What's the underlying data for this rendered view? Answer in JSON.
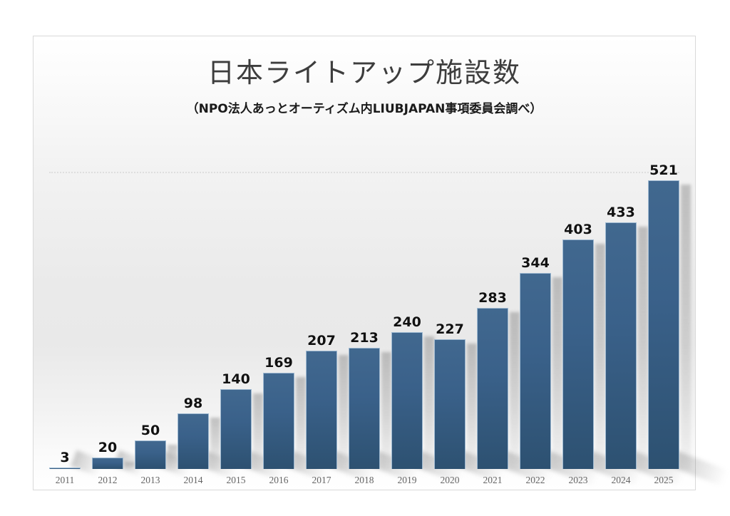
{
  "header": {
    "title": "日本ライトアップ施設数",
    "subtitle": "（NPO法人あっとオーティズム内LIUBJAPAN事項委員会調べ）"
  },
  "chart_data": {
    "type": "bar",
    "title": "日本ライトアップ施設数",
    "subtitle": "（NPO法人あっとオーティズム内LIUBJAPAN事項委員会調べ）",
    "categories": [
      "2011",
      "2012",
      "2013",
      "2014",
      "2015",
      "2016",
      "2017",
      "2018",
      "2019",
      "2020",
      "2021",
      "2022",
      "2023",
      "2024",
      "2025"
    ],
    "values": [
      3,
      20,
      50,
      98,
      140,
      169,
      207,
      213,
      240,
      227,
      283,
      344,
      403,
      433,
      521
    ],
    "xlabel": "",
    "ylabel": "",
    "ylim": [
      0,
      540
    ],
    "grid": false,
    "legend": false,
    "data_labels": true,
    "colors": {
      "bar_top": "#41688f",
      "bar_bottom": "#2d5171",
      "bar_border": "#9fbad2",
      "value_label": "#111111",
      "tick_label": "#666666",
      "title": "#3d3d3d",
      "subtitle": "#1a1a1a",
      "card_border": "#d9d9d9"
    }
  }
}
